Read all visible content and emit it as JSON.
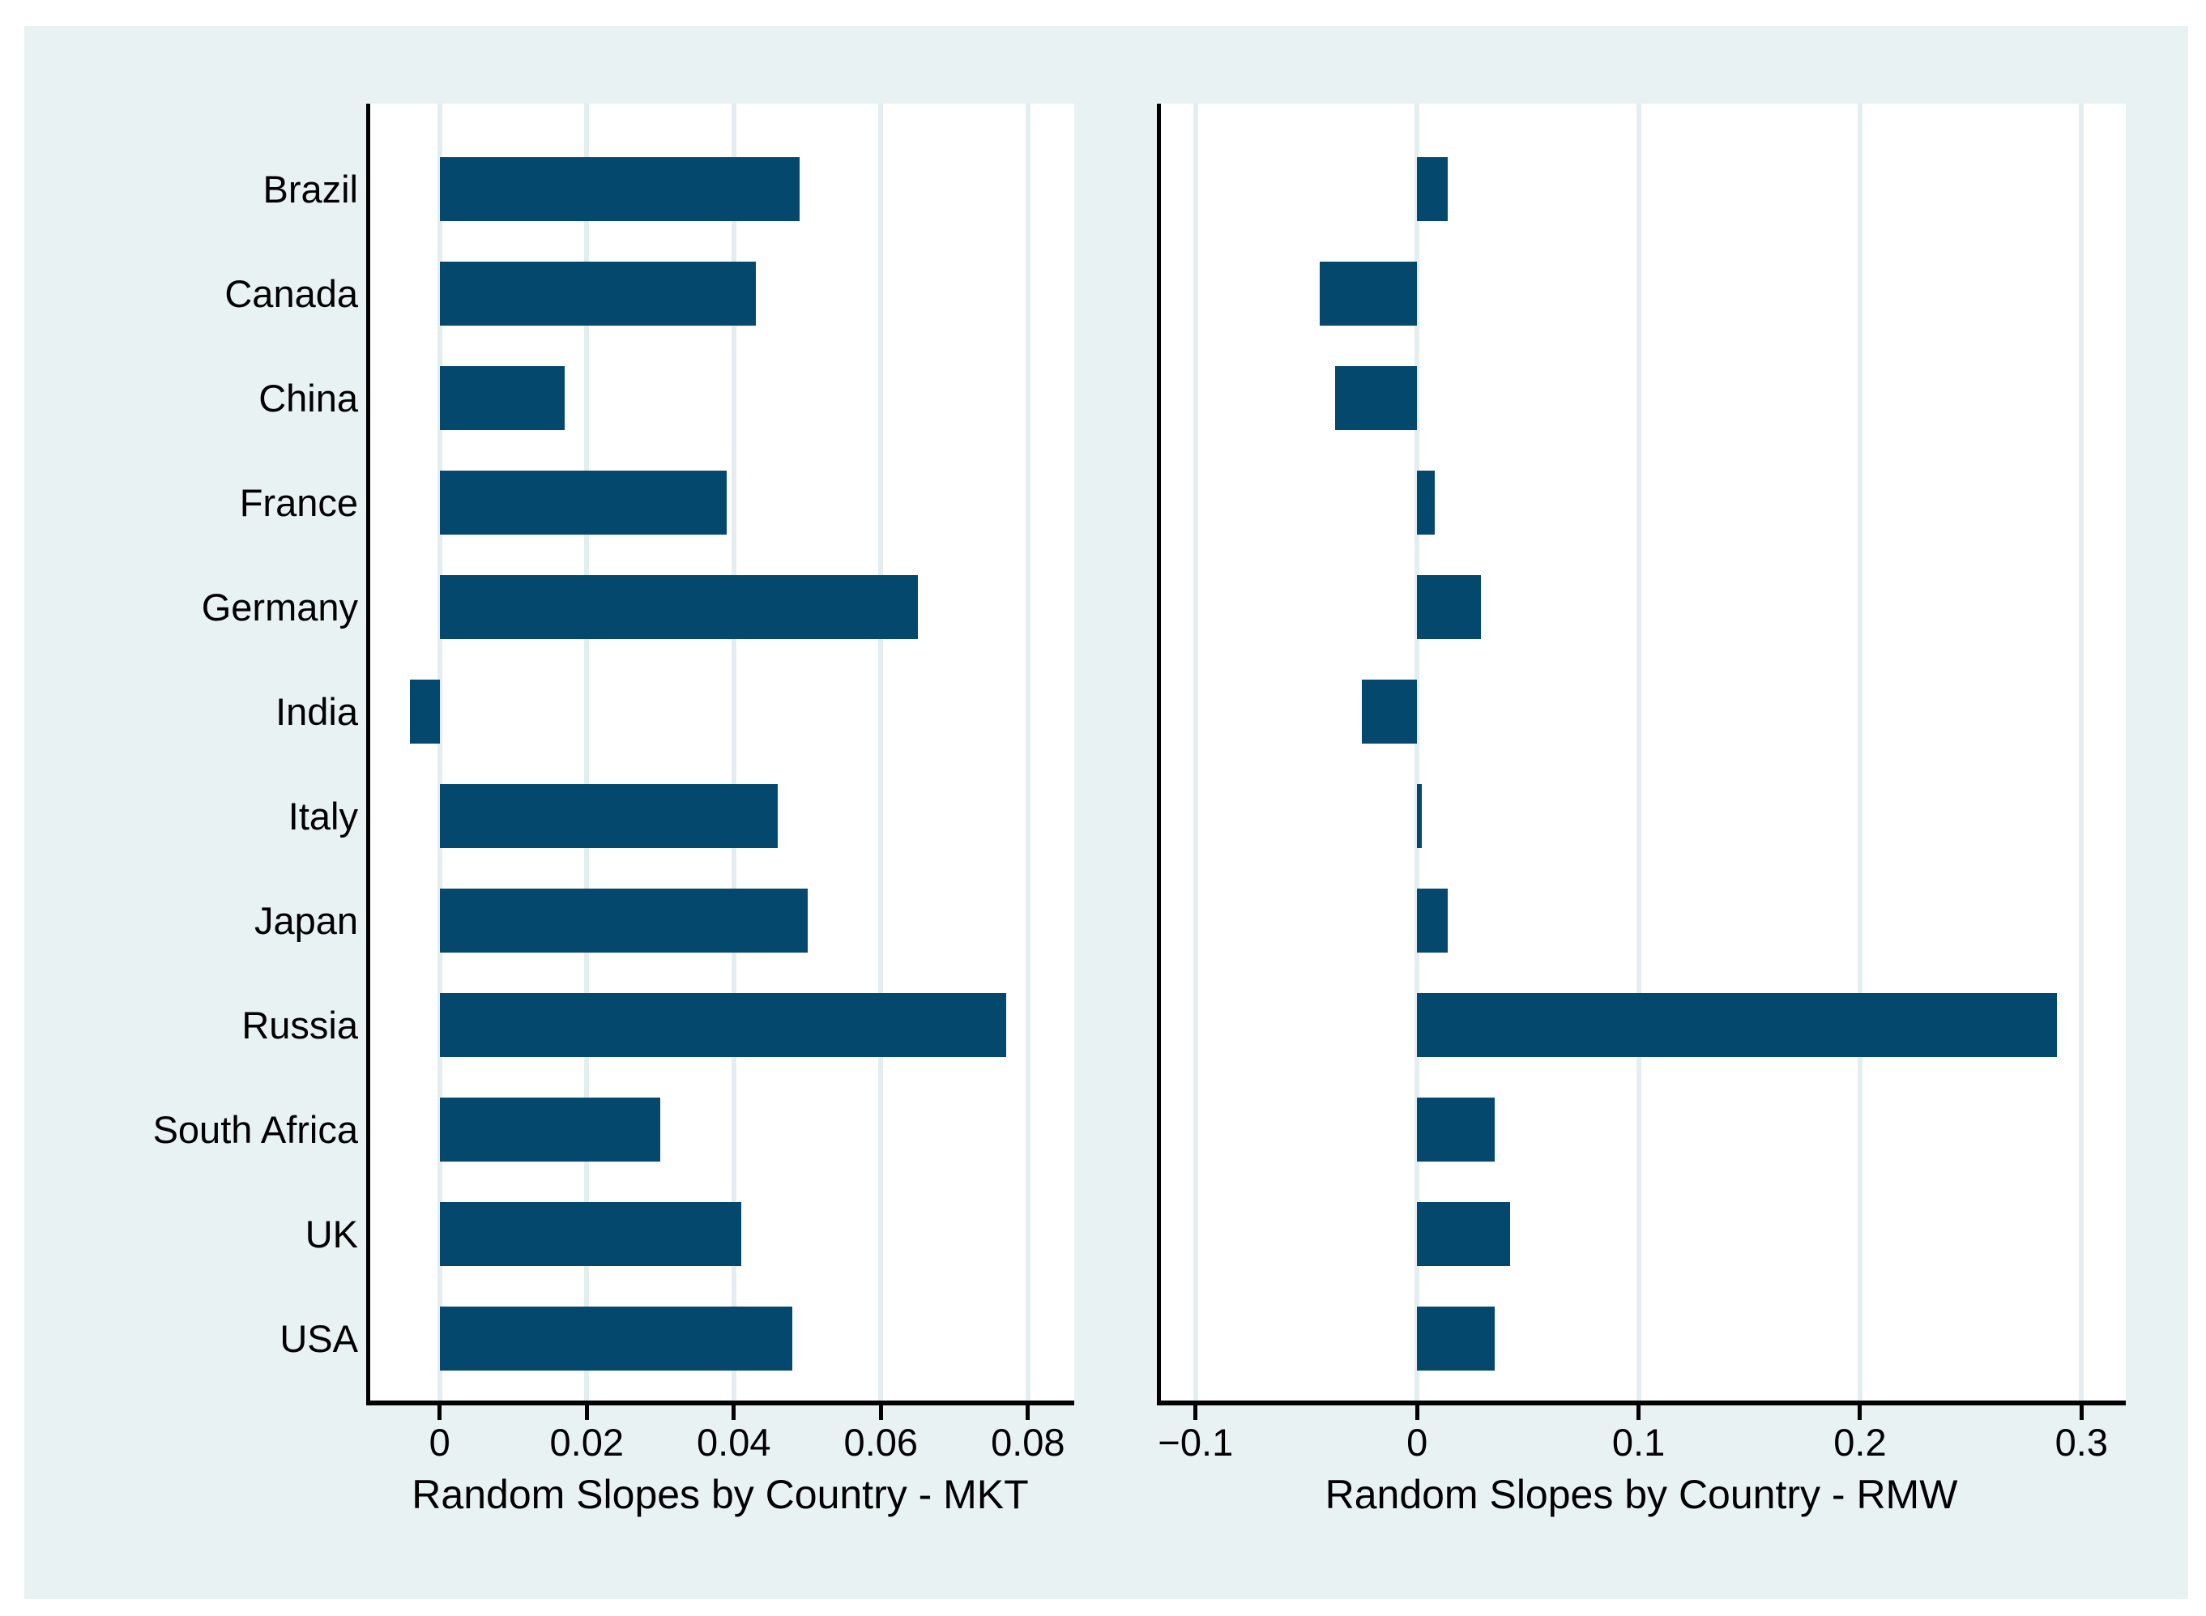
{
  "figure": {
    "bar_color": "#05486e",
    "graph_background": "#e9f2f3",
    "plot_background": "#ffffff",
    "grid_color": "#e4eef0",
    "axis_color": "#000000",
    "text_color": "#000000"
  },
  "chart_data": [
    {
      "type": "bar",
      "orientation": "horizontal",
      "title": "",
      "xlabel": "Random Slopes by Country - MKT",
      "ylabel": "",
      "categories": [
        "Brazil",
        "Canada",
        "China",
        "France",
        "Germany",
        "India",
        "Italy",
        "Japan",
        "Russia",
        "South Africa",
        "UK",
        "USA"
      ],
      "values": [
        0.049,
        0.043,
        0.017,
        0.039,
        0.065,
        -0.004,
        0.046,
        0.05,
        0.077,
        0.03,
        0.041,
        0.048
      ],
      "xlim": [
        -0.01,
        0.0863
      ],
      "xticks": [
        0,
        0.02,
        0.04,
        0.06,
        0.08
      ],
      "xtick_labels": [
        "0",
        "0.02",
        "0.04",
        "0.06",
        "0.08"
      ],
      "grid": true,
      "legend": "none",
      "show_category_labels": true
    },
    {
      "type": "bar",
      "orientation": "horizontal",
      "title": "",
      "xlabel": "Random Slopes by Country - RMW",
      "ylabel": "",
      "categories": [
        "Brazil",
        "Canada",
        "China",
        "France",
        "Germany",
        "India",
        "Italy",
        "Japan",
        "Russia",
        "South Africa",
        "UK",
        "USA"
      ],
      "values": [
        0.014,
        -0.044,
        -0.037,
        0.008,
        0.029,
        -0.025,
        0.002,
        0.014,
        0.289,
        0.035,
        0.042,
        0.035
      ],
      "xlim": [
        -0.1175,
        0.32
      ],
      "xticks": [
        -0.1,
        0,
        0.1,
        0.2,
        0.3
      ],
      "xtick_labels": [
        "−0.1",
        "0",
        "0.1",
        "0.2",
        "0.3"
      ],
      "grid": true,
      "legend": "none",
      "show_category_labels": false
    }
  ]
}
